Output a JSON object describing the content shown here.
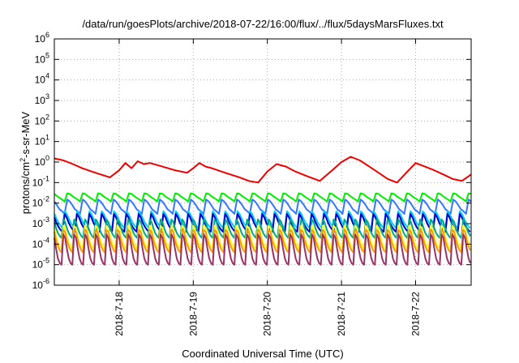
{
  "chart_data": {
    "type": "line",
    "title": "/data/run/goesPlots/archive/2018-07-22/16:00/flux/../flux/5daysMarsFluxes.txt",
    "xlabel": "Coordinated Universal Time (UTC)",
    "ylabel": {
      "prefix": "protons/cm",
      "sup": "2",
      "suffix": "-s-sr-MeV"
    },
    "xlim": [
      "2018-07-17 03:00",
      "2018-07-22 18:00"
    ],
    "ylim": [
      1e-06,
      1000000.0
    ],
    "yscale": "log",
    "grid": true,
    "xticks": [
      {
        "t": "2018-07-18 00:00",
        "label": "2018-7-18"
      },
      {
        "t": "2018-07-19 00:00",
        "label": "2018-7-19"
      },
      {
        "t": "2018-07-20 00:00",
        "label": "2018-7-20"
      },
      {
        "t": "2018-07-21 00:00",
        "label": "2018-7-21"
      },
      {
        "t": "2018-07-22 00:00",
        "label": "2018-7-22"
      }
    ],
    "yticks": [
      {
        "v": 1e-06,
        "base": "10",
        "exp": "-6"
      },
      {
        "v": 1e-05,
        "base": "10",
        "exp": "-5"
      },
      {
        "v": 0.0001,
        "base": "10",
        "exp": "-4"
      },
      {
        "v": 0.001,
        "base": "10",
        "exp": "-3"
      },
      {
        "v": 0.01,
        "base": "10",
        "exp": "-2"
      },
      {
        "v": 0.1,
        "base": "10",
        "exp": "-1"
      },
      {
        "v": 1.0,
        "base": "10",
        "exp": "0"
      },
      {
        "v": 10.0,
        "base": "10",
        "exp": "1"
      },
      {
        "v": 100.0,
        "base": "10",
        "exp": "2"
      },
      {
        "v": 1000.0,
        "base": "10",
        "exp": "3"
      },
      {
        "v": 10000.0,
        "base": "10",
        "exp": "4"
      },
      {
        "v": 100000.0,
        "base": "10",
        "exp": "5"
      },
      {
        "v": 1000000.0,
        "base": "10",
        "exp": "6"
      }
    ],
    "series": [
      {
        "color": "#ee0000",
        "x": [
          "2018-07-17 03:00",
          "2018-07-17 06:00",
          "2018-07-17 09:00",
          "2018-07-17 12:00",
          "2018-07-17 15:00",
          "2018-07-17 18:00",
          "2018-07-17 21:00",
          "2018-07-18 00:00",
          "2018-07-18 02:00",
          "2018-07-18 04:00",
          "2018-07-18 06:00",
          "2018-07-18 08:00",
          "2018-07-18 10:00",
          "2018-07-18 14:00",
          "2018-07-18 18:00",
          "2018-07-18 22:00",
          "2018-07-19 00:00",
          "2018-07-19 02:00",
          "2018-07-19 04:00",
          "2018-07-19 06:00",
          "2018-07-19 09:00",
          "2018-07-19 12:00",
          "2018-07-19 15:00",
          "2018-07-19 18:00",
          "2018-07-19 21:00",
          "2018-07-20 00:00",
          "2018-07-20 03:00",
          "2018-07-20 06:00",
          "2018-07-20 09:00",
          "2018-07-20 13:00",
          "2018-07-20 17:00",
          "2018-07-20 21:00",
          "2018-07-21 00:00",
          "2018-07-21 03:00",
          "2018-07-21 06:00",
          "2018-07-21 09:00",
          "2018-07-21 12:00",
          "2018-07-21 15:00",
          "2018-07-21 18:00",
          "2018-07-21 21:00",
          "2018-07-22 00:00",
          "2018-07-22 03:00",
          "2018-07-22 06:00",
          "2018-07-22 09:00",
          "2018-07-22 12:00",
          "2018-07-22 15:00",
          "2018-07-22 18:00"
        ],
        "y": [
          1.5,
          1.2,
          0.8,
          0.5,
          0.35,
          0.25,
          0.18,
          0.4,
          0.9,
          0.5,
          1.1,
          0.8,
          0.9,
          0.6,
          0.4,
          0.3,
          0.5,
          0.9,
          0.6,
          0.5,
          0.35,
          0.25,
          0.18,
          0.12,
          0.1,
          0.35,
          0.8,
          0.6,
          0.35,
          0.2,
          0.12,
          0.4,
          1.0,
          1.8,
          1.2,
          0.6,
          0.3,
          0.15,
          0.1,
          0.3,
          0.9,
          0.6,
          0.4,
          0.25,
          0.15,
          0.12,
          0.25
        ]
      },
      {
        "color": "#00ee00",
        "pattern": {
          "base": [
            0.028,
            0.022,
            0.018,
            0.015,
            0.012,
            0.03
          ],
          "period_h": 5,
          "start": "2018-07-17 03:00",
          "end": "2018-07-22 18:00"
        }
      },
      {
        "color": "#3377ff",
        "pattern": {
          "base": [
            0.012,
            0.008,
            0.005,
            0.004,
            0.003,
            0.015
          ],
          "period_h": 5,
          "start": "2018-07-17 03:00",
          "end": "2018-07-22 18:00"
        }
      },
      {
        "color": "#00ccff",
        "pattern": {
          "base": [
            0.003,
            0.0018,
            0.0011,
            0.0008,
            0.0006,
            0.004
          ],
          "period_h": 4,
          "start": "2018-07-17 03:00",
          "end": "2018-07-22 18:00"
        }
      },
      {
        "color": "#0000cc",
        "pattern": {
          "base": [
            0.002,
            0.0011,
            0.0007,
            0.0005,
            0.0004,
            0.003
          ],
          "period_h": 4,
          "start": "2018-07-17 03:00",
          "end": "2018-07-22 18:00"
        }
      },
      {
        "color": "#00aa88",
        "pattern": {
          "base": [
            0.0012,
            0.0006,
            0.00035,
            0.00025,
            0.0002,
            0.0016
          ],
          "period_h": 3.5,
          "start": "2018-07-17 03:00",
          "end": "2018-07-22 18:00"
        }
      },
      {
        "color": "#ffff33",
        "pattern": {
          "base": [
            0.0006,
            0.00025,
            0.00012,
            8e-05,
            6e-05,
            0.0008
          ],
          "period_h": 3.5,
          "start": "2018-07-17 03:00",
          "end": "2018-07-22 18:00"
        }
      },
      {
        "color": "#ff9900",
        "pattern": {
          "base": [
            0.0004,
            0.00015,
            8e-05,
            5e-05,
            4e-05,
            0.0005
          ],
          "period_h": 3.5,
          "start": "2018-07-17 03:00",
          "end": "2018-07-22 18:00"
        }
      },
      {
        "color": "#993366",
        "pattern": {
          "base": [
            0.0002,
            6e-05,
            2e-05,
            1.2e-05,
            1e-05,
            0.0003
          ],
          "period_h": 3.5,
          "start": "2018-07-17 03:00",
          "end": "2018-07-22 18:00"
        }
      }
    ]
  }
}
